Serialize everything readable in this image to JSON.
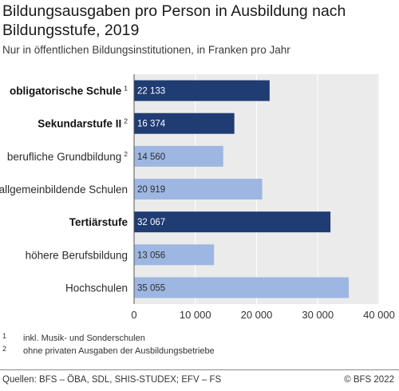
{
  "title": "Bildungsausgaben pro Person in Ausbildung nach Bildungsstufe, 2019",
  "subtitle": "Nur in öffentlichen Bildungsinstitutionen, in Franken pro Jahr",
  "colors": {
    "primary": "#1f3c73",
    "secondary": "#9db7e2",
    "plot_bg": "#ebebeb",
    "grid": "#ffffff"
  },
  "chart_data": {
    "type": "bar",
    "orientation": "horizontal",
    "categories": [
      "obligatorische Schule",
      "Sekundarstufe II",
      "berufliche Grundbildung",
      "allgemeinbildende Schulen",
      "Tertiärstufe",
      "höhere Berufsbildung",
      "Hochschulen"
    ],
    "category_footnotes": [
      "1",
      "2",
      "2",
      "",
      "",
      "",
      ""
    ],
    "category_bold": [
      true,
      true,
      false,
      false,
      true,
      false,
      false
    ],
    "values": [
      22133,
      16374,
      14560,
      20919,
      32067,
      13056,
      35055
    ],
    "value_labels": [
      "22 133",
      "16 374",
      "14 560",
      "20 919",
      "32 067",
      "13 056",
      "35 055"
    ],
    "bar_colors": [
      "#1f3c73",
      "#1f3c73",
      "#9db7e2",
      "#9db7e2",
      "#1f3c73",
      "#9db7e2",
      "#9db7e2"
    ],
    "xlim": [
      0,
      40000
    ],
    "xticks": [
      0,
      10000,
      20000,
      30000,
      40000
    ],
    "xtick_labels": [
      "0",
      "10 000",
      "20 000",
      "30 000",
      "40 000"
    ],
    "grid": true
  },
  "footnotes": [
    {
      "marker": "1",
      "text": "inkl. Musik- und Sonderschulen"
    },
    {
      "marker": "2",
      "text": "ohne privaten Ausgaben der Ausbildungsbetriebe"
    }
  ],
  "source": "Quellen: BFS – ÖBA, SDL, SHIS-STUDEX; EFV – FS",
  "copyright": "© BFS 2022"
}
